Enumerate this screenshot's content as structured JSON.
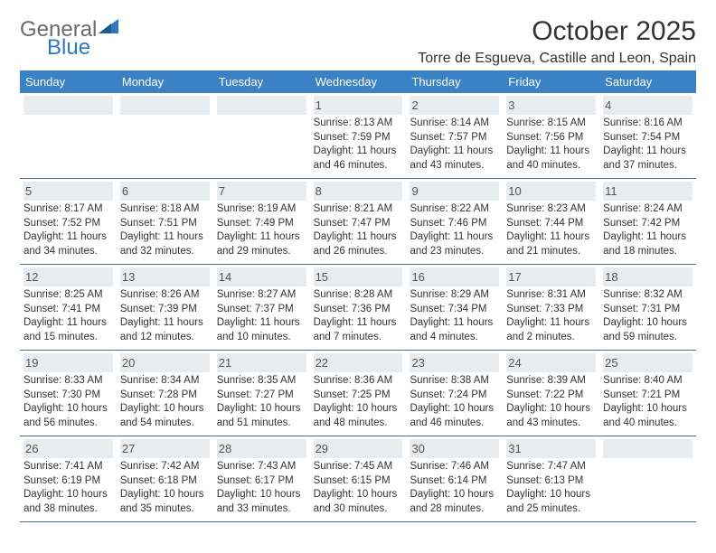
{
  "logo": {
    "top": "General",
    "bottom": "Blue",
    "gray": "#6a6a6a",
    "blue": "#2f78c1"
  },
  "title": "October 2025",
  "location": "Torre de Esgueva, Castille and Leon, Spain",
  "header_bg": "#3b82c4",
  "daynum_bg": "#e9ecee",
  "rule_color": "#4a6b8a",
  "day_names": [
    "Sunday",
    "Monday",
    "Tuesday",
    "Wednesday",
    "Thursday",
    "Friday",
    "Saturday"
  ],
  "weeks": [
    [
      null,
      null,
      null,
      {
        "n": "1",
        "sr": "8:13 AM",
        "ss": "7:59 PM",
        "dl": "11 hours and 46 minutes."
      },
      {
        "n": "2",
        "sr": "8:14 AM",
        "ss": "7:57 PM",
        "dl": "11 hours and 43 minutes."
      },
      {
        "n": "3",
        "sr": "8:15 AM",
        "ss": "7:56 PM",
        "dl": "11 hours and 40 minutes."
      },
      {
        "n": "4",
        "sr": "8:16 AM",
        "ss": "7:54 PM",
        "dl": "11 hours and 37 minutes."
      }
    ],
    [
      {
        "n": "5",
        "sr": "8:17 AM",
        "ss": "7:52 PM",
        "dl": "11 hours and 34 minutes."
      },
      {
        "n": "6",
        "sr": "8:18 AM",
        "ss": "7:51 PM",
        "dl": "11 hours and 32 minutes."
      },
      {
        "n": "7",
        "sr": "8:19 AM",
        "ss": "7:49 PM",
        "dl": "11 hours and 29 minutes."
      },
      {
        "n": "8",
        "sr": "8:21 AM",
        "ss": "7:47 PM",
        "dl": "11 hours and 26 minutes."
      },
      {
        "n": "9",
        "sr": "8:22 AM",
        "ss": "7:46 PM",
        "dl": "11 hours and 23 minutes."
      },
      {
        "n": "10",
        "sr": "8:23 AM",
        "ss": "7:44 PM",
        "dl": "11 hours and 21 minutes."
      },
      {
        "n": "11",
        "sr": "8:24 AM",
        "ss": "7:42 PM",
        "dl": "11 hours and 18 minutes."
      }
    ],
    [
      {
        "n": "12",
        "sr": "8:25 AM",
        "ss": "7:41 PM",
        "dl": "11 hours and 15 minutes."
      },
      {
        "n": "13",
        "sr": "8:26 AM",
        "ss": "7:39 PM",
        "dl": "11 hours and 12 minutes."
      },
      {
        "n": "14",
        "sr": "8:27 AM",
        "ss": "7:37 PM",
        "dl": "11 hours and 10 minutes."
      },
      {
        "n": "15",
        "sr": "8:28 AM",
        "ss": "7:36 PM",
        "dl": "11 hours and 7 minutes."
      },
      {
        "n": "16",
        "sr": "8:29 AM",
        "ss": "7:34 PM",
        "dl": "11 hours and 4 minutes."
      },
      {
        "n": "17",
        "sr": "8:31 AM",
        "ss": "7:33 PM",
        "dl": "11 hours and 2 minutes."
      },
      {
        "n": "18",
        "sr": "8:32 AM",
        "ss": "7:31 PM",
        "dl": "10 hours and 59 minutes."
      }
    ],
    [
      {
        "n": "19",
        "sr": "8:33 AM",
        "ss": "7:30 PM",
        "dl": "10 hours and 56 minutes."
      },
      {
        "n": "20",
        "sr": "8:34 AM",
        "ss": "7:28 PM",
        "dl": "10 hours and 54 minutes."
      },
      {
        "n": "21",
        "sr": "8:35 AM",
        "ss": "7:27 PM",
        "dl": "10 hours and 51 minutes."
      },
      {
        "n": "22",
        "sr": "8:36 AM",
        "ss": "7:25 PM",
        "dl": "10 hours and 48 minutes."
      },
      {
        "n": "23",
        "sr": "8:38 AM",
        "ss": "7:24 PM",
        "dl": "10 hours and 46 minutes."
      },
      {
        "n": "24",
        "sr": "8:39 AM",
        "ss": "7:22 PM",
        "dl": "10 hours and 43 minutes."
      },
      {
        "n": "25",
        "sr": "8:40 AM",
        "ss": "7:21 PM",
        "dl": "10 hours and 40 minutes."
      }
    ],
    [
      {
        "n": "26",
        "sr": "7:41 AM",
        "ss": "6:19 PM",
        "dl": "10 hours and 38 minutes."
      },
      {
        "n": "27",
        "sr": "7:42 AM",
        "ss": "6:18 PM",
        "dl": "10 hours and 35 minutes."
      },
      {
        "n": "28",
        "sr": "7:43 AM",
        "ss": "6:17 PM",
        "dl": "10 hours and 33 minutes."
      },
      {
        "n": "29",
        "sr": "7:45 AM",
        "ss": "6:15 PM",
        "dl": "10 hours and 30 minutes."
      },
      {
        "n": "30",
        "sr": "7:46 AM",
        "ss": "6:14 PM",
        "dl": "10 hours and 28 minutes."
      },
      {
        "n": "31",
        "sr": "7:47 AM",
        "ss": "6:13 PM",
        "dl": "10 hours and 25 minutes."
      },
      null
    ]
  ],
  "labels": {
    "sunrise": "Sunrise:",
    "sunset": "Sunset:",
    "daylight": "Daylight:"
  }
}
